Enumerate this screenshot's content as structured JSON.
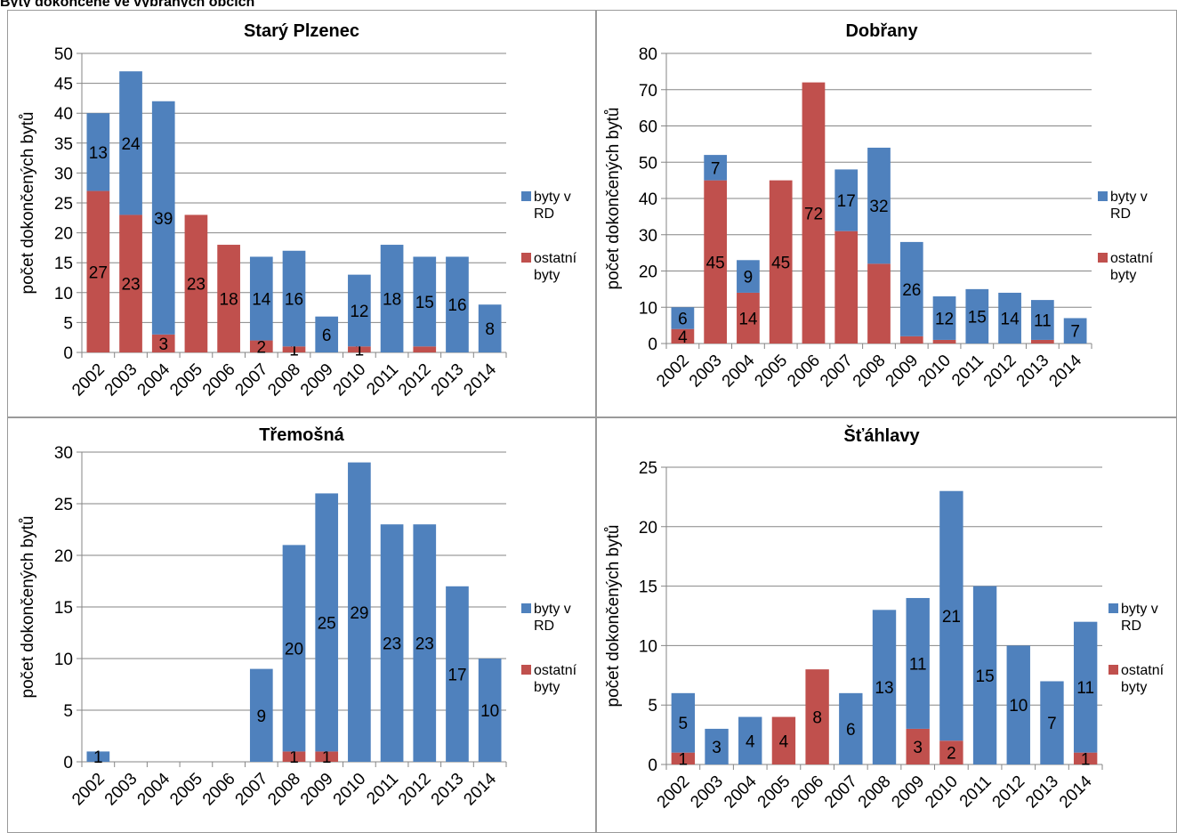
{
  "header": {
    "title": "Byty dokončené ve vybraných obcích"
  },
  "colors": {
    "rd": "#4F81BD",
    "other": "#C0504D",
    "grid": "#868686"
  },
  "chart_data": [
    {
      "type": "bar",
      "stacked": true,
      "title": "Starý Plzenec",
      "ylabel": "počet dokončených bytů",
      "ylim": [
        0,
        50
      ],
      "ystep": 5,
      "legend_position": "right",
      "categories": [
        "2002",
        "2003",
        "2004",
        "2005",
        "2006",
        "2007",
        "2008",
        "2009",
        "2010",
        "2011",
        "2012",
        "2013",
        "2014"
      ],
      "series": [
        {
          "name": "ostatní byty",
          "values": [
            27,
            23,
            3,
            23,
            18,
            2,
            1,
            0,
            1,
            0,
            1,
            0,
            0
          ],
          "labels": [
            "27",
            "23",
            "3",
            "23",
            "18",
            "2",
            "1",
            "",
            "1",
            "",
            "",
            "",
            ""
          ]
        },
        {
          "name": "byty v RD",
          "values": [
            13,
            24,
            39,
            0,
            0,
            14,
            16,
            6,
            12,
            18,
            15,
            16,
            8
          ],
          "labels": [
            "13",
            "24",
            "39",
            "",
            "",
            "14",
            "16",
            "6",
            "12",
            "18",
            "15",
            "16",
            "8"
          ]
        }
      ]
    },
    {
      "type": "bar",
      "stacked": true,
      "title": "Dobřany",
      "ylabel": "počet dokončených bytů",
      "ylim": [
        0,
        80
      ],
      "ystep": 10,
      "legend_position": "right",
      "categories": [
        "2002",
        "2003",
        "2004",
        "2005",
        "2006",
        "2007",
        "2008",
        "2009",
        "2010",
        "2011",
        "2012",
        "2013",
        "2014"
      ],
      "series": [
        {
          "name": "ostatní byty",
          "values": [
            4,
            45,
            14,
            45,
            72,
            31,
            22,
            2,
            1,
            0,
            0,
            1,
            0
          ],
          "labels": [
            "4",
            "45",
            "14",
            "45",
            "72",
            "",
            "",
            "",
            "",
            "",
            "",
            "",
            ""
          ]
        },
        {
          "name": "byty v RD",
          "values": [
            6,
            7,
            9,
            0,
            0,
            17,
            32,
            26,
            12,
            15,
            14,
            11,
            7
          ],
          "labels": [
            "6",
            "7",
            "9",
            "",
            "",
            "17",
            "32",
            "26",
            "12",
            "15",
            "14",
            "11",
            "7"
          ]
        }
      ]
    },
    {
      "type": "bar",
      "stacked": true,
      "title": "Třemošná",
      "ylabel": "počet dokončených bytů",
      "ylim": [
        0,
        30
      ],
      "ystep": 5,
      "legend_position": "right",
      "categories": [
        "2002",
        "2003",
        "2004",
        "2005",
        "2006",
        "2007",
        "2008",
        "2009",
        "2010",
        "2011",
        "2012",
        "2013",
        "2014"
      ],
      "series": [
        {
          "name": "ostatní byty",
          "values": [
            0,
            0,
            0,
            0,
            0,
            0,
            1,
            1,
            0,
            0,
            0,
            0,
            0
          ],
          "labels": [
            "",
            "",
            "",
            "",
            "",
            "",
            "1",
            "1",
            "",
            "",
            "",
            "",
            ""
          ]
        },
        {
          "name": "byty v RD",
          "values": [
            1,
            0,
            0,
            0,
            0,
            9,
            20,
            25,
            29,
            23,
            23,
            17,
            10
          ],
          "labels": [
            "1",
            "",
            "",
            "",
            "",
            "9",
            "20",
            "25",
            "29",
            "23",
            "23",
            "17",
            "10"
          ]
        }
      ]
    },
    {
      "type": "bar",
      "stacked": true,
      "title": "Šťáhlavy",
      "ylabel": "počet dokončených bytů",
      "ylim": [
        0,
        25
      ],
      "ystep": 5,
      "legend_position": "right",
      "categories": [
        "2002",
        "2003",
        "2004",
        "2005",
        "2006",
        "2007",
        "2008",
        "2009",
        "2010",
        "2011",
        "2012",
        "2013",
        "2014"
      ],
      "series": [
        {
          "name": "ostatní byty",
          "values": [
            1,
            0,
            0,
            4,
            8,
            0,
            0,
            3,
            2,
            0,
            0,
            0,
            1
          ],
          "labels": [
            "1",
            "",
            "",
            "4",
            "8",
            "",
            "",
            "3",
            "2",
            "",
            "",
            "",
            "1"
          ]
        },
        {
          "name": "byty v RD",
          "values": [
            5,
            3,
            4,
            0,
            0,
            6,
            13,
            11,
            21,
            15,
            10,
            7,
            11
          ],
          "labels": [
            "5",
            "3",
            "4",
            "",
            "",
            "6",
            "13",
            "11",
            "21",
            "15",
            "10",
            "7",
            "11"
          ]
        }
      ]
    }
  ]
}
